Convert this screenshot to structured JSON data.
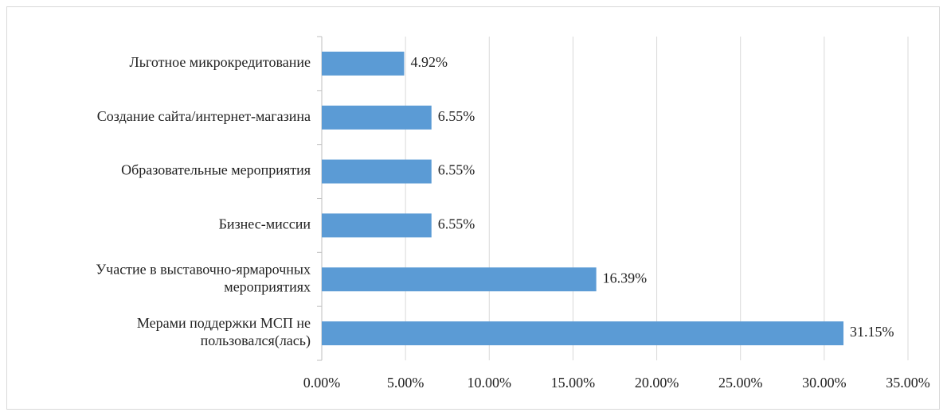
{
  "chart_data": {
    "type": "barh",
    "categories": [
      "Льготное микрокредитование",
      "Создание сайта/интернет-магазина",
      "Образовательные мероприятия",
      "Бизнес-миссии",
      "Участие в выставочно-ярмарочных\nмероприятиях",
      "Мерами поддержки МСП не\nпользовался(лась)"
    ],
    "values": [
      4.92,
      6.55,
      6.55,
      6.55,
      16.39,
      31.15
    ],
    "value_labels": [
      "4.92%",
      "6.55%",
      "6.55%",
      "6.55%",
      "16.39%",
      "31.15%"
    ],
    "color": "#5b9bd5",
    "xlim": [
      0,
      35
    ],
    "xticks": [
      {
        "value": 0,
        "label": "0.00%"
      },
      {
        "value": 5,
        "label": "5.00%"
      },
      {
        "value": 10,
        "label": "10.00%"
      },
      {
        "value": 15,
        "label": "15.00%"
      },
      {
        "value": 20,
        "label": "20.00%"
      },
      {
        "value": 25,
        "label": "25.00%"
      },
      {
        "value": 30,
        "label": "30.00%"
      },
      {
        "value": 35,
        "label": "35.00%"
      }
    ],
    "grid": true
  }
}
